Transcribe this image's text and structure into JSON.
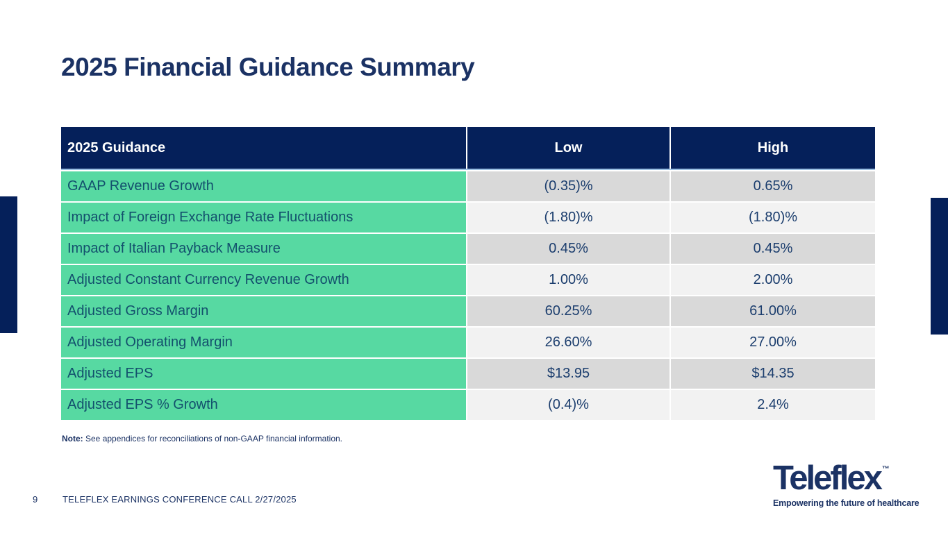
{
  "title": "2025 Financial Guidance Summary",
  "table": {
    "headers": {
      "guidance": "2025 Guidance",
      "low": "Low",
      "high": "High"
    },
    "rows": [
      {
        "label": "GAAP Revenue Growth",
        "low": "(0.35)%",
        "high": "0.65%"
      },
      {
        "label": "Impact of Foreign Exchange Rate Fluctuations",
        "low": "(1.80)%",
        "high": "(1.80)%"
      },
      {
        "label": "Impact of Italian Payback Measure",
        "low": "0.45%",
        "high": "0.45%"
      },
      {
        "label": "Adjusted Constant Currency Revenue Growth",
        "low": "1.00%",
        "high": "2.00%"
      },
      {
        "label": "Adjusted Gross Margin",
        "low": "60.25%",
        "high": "61.00%"
      },
      {
        "label": "Adjusted Operating Margin",
        "low": "26.60%",
        "high": "27.00%"
      },
      {
        "label": "Adjusted EPS",
        "low": "$13.95",
        "high": "$14.35"
      },
      {
        "label": "Adjusted EPS % Growth",
        "low": "(0.4)%",
        "high": "2.4%"
      }
    ]
  },
  "note": {
    "label": "Note:",
    "text": " See appendices for reconciliations of non-GAAP financial information."
  },
  "footer": {
    "page_number": "9",
    "text": "TELEFLEX EARNINGS CONFERENCE CALL 2/27/2025"
  },
  "logo": {
    "brand": "Teleflex",
    "trademark": "™",
    "tagline": "Empowering the future of healthcare"
  },
  "colors": {
    "navy": "#05205A",
    "header_bg": "#05205A",
    "header_text": "#FFFFFF",
    "header_underline": "#9CC2E5",
    "row_label_bg": "#57D9A2",
    "row_label_text": "#13506D",
    "value_text": "#1C3E6E",
    "row_shade_dark": "#D9D9D9",
    "row_shade_light": "#F2F2F2",
    "title_text": "#1B3264"
  }
}
